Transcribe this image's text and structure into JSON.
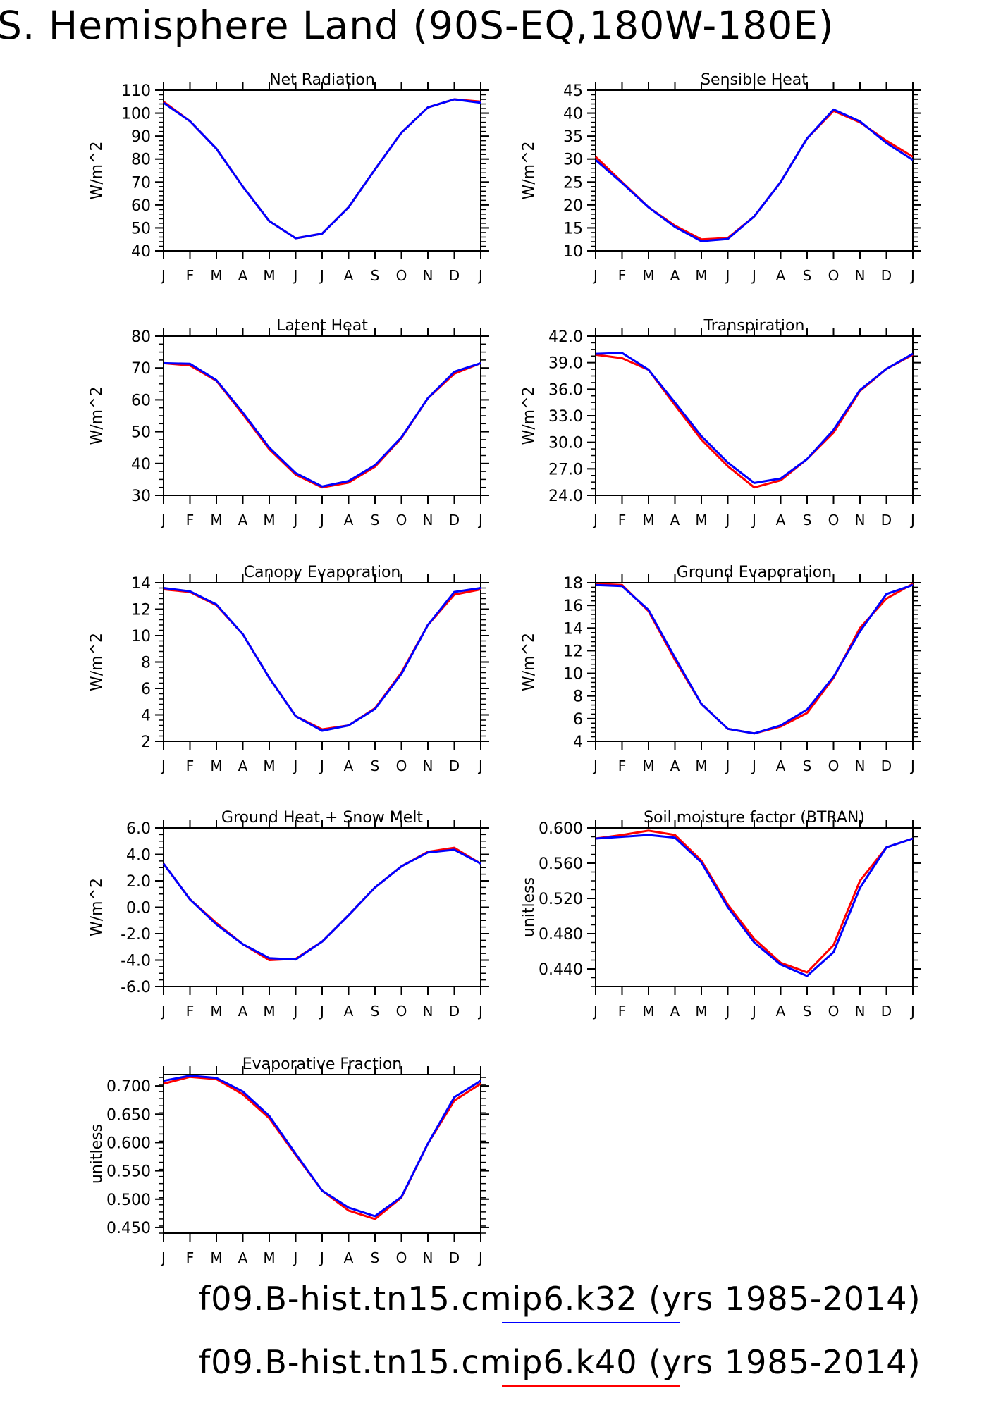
{
  "page": {
    "title": "S. Hemisphere Land (90S-EQ,180W-180E)"
  },
  "colors": {
    "k32": "#0000ff",
    "k40": "#ff0000"
  },
  "legend": [
    {
      "text": "f09.B-hist.tn15.cmip6.k32 (yrs 1985-2014)",
      "color": "#0000ff"
    },
    {
      "text": "f09.B-hist.tn15.cmip6.k40 (yrs 1985-2014)",
      "color": "#ff0000"
    }
  ],
  "chart_data": [
    {
      "type": "line",
      "title": "Net Radiation",
      "ylabel": "W/m^2",
      "x": [
        "J",
        "F",
        "M",
        "A",
        "M",
        "J",
        "J",
        "A",
        "S",
        "O",
        "N",
        "D",
        "J"
      ],
      "ylim": [
        40,
        110
      ],
      "yticks": [
        "40",
        "50",
        "60",
        "70",
        "80",
        "90",
        "100",
        "110"
      ],
      "yticks_values": [
        40,
        50,
        60,
        70,
        80,
        90,
        100,
        110
      ],
      "minor": 1,
      "series": [
        {
          "color": "#ff0000",
          "values": [
            105,
            96.5,
            84.5,
            68,
            53,
            45.5,
            47.5,
            59,
            75.5,
            91.5,
            102.5,
            106,
            105
          ]
        },
        {
          "color": "#0000ff",
          "values": [
            104.5,
            96.5,
            84.5,
            68,
            53,
            45.5,
            47.5,
            59,
            75.5,
            91.5,
            102.5,
            106,
            104.5
          ]
        }
      ]
    },
    {
      "type": "line",
      "title": "Sensible Heat",
      "ylabel": "W/m^2",
      "x": [
        "J",
        "F",
        "M",
        "A",
        "M",
        "J",
        "J",
        "A",
        "S",
        "O",
        "N",
        "D",
        "J"
      ],
      "ylim": [
        10,
        45
      ],
      "yticks": [
        "10",
        "15",
        "20",
        "25",
        "30",
        "35",
        "40",
        "45"
      ],
      "yticks_values": [
        10,
        15,
        20,
        25,
        30,
        35,
        40,
        45
      ],
      "minor": 1,
      "series": [
        {
          "color": "#ff0000",
          "values": [
            30.5,
            25,
            19.5,
            15.5,
            12.5,
            12.8,
            17.5,
            25,
            34.5,
            40.5,
            38,
            34,
            30.5
          ]
        },
        {
          "color": "#0000ff",
          "values": [
            29.8,
            24.8,
            19.5,
            15.2,
            12.1,
            12.6,
            17.5,
            25,
            34.5,
            40.8,
            38.2,
            33.5,
            29.8
          ]
        }
      ]
    },
    {
      "type": "line",
      "title": "Latent Heat",
      "ylabel": "W/m^2",
      "x": [
        "J",
        "F",
        "M",
        "A",
        "M",
        "J",
        "J",
        "A",
        "S",
        "O",
        "N",
        "D",
        "J"
      ],
      "ylim": [
        30,
        80
      ],
      "yticks": [
        "30",
        "40",
        "50",
        "60",
        "70",
        "80"
      ],
      "yticks_values": [
        30,
        40,
        50,
        60,
        70,
        80
      ],
      "minor": 2,
      "series": [
        {
          "color": "#ff0000",
          "values": [
            71.5,
            70.8,
            66,
            55.5,
            44.5,
            36.5,
            32.5,
            34,
            39,
            48,
            60.5,
            68.2,
            71.5
          ]
        },
        {
          "color": "#0000ff",
          "values": [
            71.5,
            71.3,
            66.2,
            56,
            45,
            37,
            32.8,
            34.5,
            39.5,
            48.2,
            60.5,
            68.8,
            71.5
          ]
        }
      ]
    },
    {
      "type": "line",
      "title": "Transpiration",
      "ylabel": "W/m^2",
      "x": [
        "J",
        "F",
        "M",
        "A",
        "M",
        "J",
        "J",
        "A",
        "S",
        "O",
        "N",
        "D",
        "J"
      ],
      "ylim": [
        24,
        42
      ],
      "yticks": [
        "24.0",
        "27.0",
        "30.0",
        "33.0",
        "36.0",
        "39.0",
        "42.0"
      ],
      "yticks_values": [
        24,
        27,
        30,
        33,
        36,
        39,
        42
      ],
      "minor": 2,
      "series": [
        {
          "color": "#ff0000",
          "values": [
            39.9,
            39.5,
            38.2,
            34.2,
            30.3,
            27.3,
            24.9,
            25.7,
            28.1,
            31.1,
            35.8,
            38.3,
            39.9
          ]
        },
        {
          "color": "#0000ff",
          "values": [
            40,
            40.1,
            38.2,
            34.5,
            30.7,
            27.7,
            25.4,
            25.9,
            28.1,
            31.4,
            35.9,
            38.3,
            40
          ]
        }
      ]
    },
    {
      "type": "line",
      "title": "Canopy Evaporation",
      "ylabel": "W/m^2",
      "x": [
        "J",
        "F",
        "M",
        "A",
        "M",
        "J",
        "J",
        "A",
        "S",
        "O",
        "N",
        "D",
        "J"
      ],
      "ylim": [
        2,
        14
      ],
      "yticks": [
        "2",
        "4",
        "6",
        "8",
        "10",
        "12",
        "14"
      ],
      "yticks_values": [
        2,
        4,
        6,
        8,
        10,
        12,
        14
      ],
      "minor": 1,
      "series": [
        {
          "color": "#ff0000",
          "values": [
            13.5,
            13.3,
            12.3,
            10.1,
            6.8,
            3.9,
            2.9,
            3.2,
            4.5,
            7.2,
            10.8,
            13.1,
            13.5
          ]
        },
        {
          "color": "#0000ff",
          "values": [
            13.6,
            13.35,
            12.35,
            10.1,
            6.8,
            3.9,
            2.8,
            3.2,
            4.45,
            7.1,
            10.8,
            13.3,
            13.6
          ]
        }
      ]
    },
    {
      "type": "line",
      "title": "Ground Evaporation",
      "ylabel": "W/m^2",
      "x": [
        "J",
        "F",
        "M",
        "A",
        "M",
        "J",
        "J",
        "A",
        "S",
        "O",
        "N",
        "D",
        "J"
      ],
      "ylim": [
        4,
        18
      ],
      "yticks": [
        "4",
        "6",
        "8",
        "10",
        "12",
        "14",
        "16",
        "18"
      ],
      "yticks_values": [
        4,
        6,
        8,
        10,
        12,
        14,
        16,
        18
      ],
      "minor": 1,
      "series": [
        {
          "color": "#ff0000",
          "values": [
            17.9,
            17.8,
            15.5,
            11.2,
            7.3,
            5.1,
            4.7,
            5.3,
            6.5,
            9.6,
            14,
            16.6,
            17.9
          ]
        },
        {
          "color": "#0000ff",
          "values": [
            17.8,
            17.7,
            15.6,
            11.4,
            7.3,
            5.1,
            4.7,
            5.4,
            6.8,
            9.7,
            13.7,
            17,
            17.8
          ]
        }
      ]
    },
    {
      "type": "line",
      "title": "Ground Heat + Snow Melt",
      "ylabel": "W/m^2",
      "x": [
        "J",
        "F",
        "M",
        "A",
        "M",
        "J",
        "J",
        "A",
        "S",
        "O",
        "N",
        "D",
        "J"
      ],
      "ylim": [
        -6,
        6
      ],
      "yticks": [
        "-6.0",
        "-4.0",
        "-2.0",
        "0.0",
        "2.0",
        "4.0",
        "6.0"
      ],
      "yticks_values": [
        -6,
        -4,
        -2,
        0,
        2,
        4,
        6
      ],
      "minor": 2,
      "series": [
        {
          "color": "#ff0000",
          "values": [
            3.3,
            0.6,
            -1.2,
            -2.8,
            -4.0,
            -3.9,
            -2.6,
            -0.6,
            1.5,
            3.1,
            4.2,
            4.5,
            3.3
          ]
        },
        {
          "color": "#0000ff",
          "values": [
            3.3,
            0.6,
            -1.3,
            -2.8,
            -3.85,
            -3.95,
            -2.6,
            -0.6,
            1.5,
            3.1,
            4.15,
            4.35,
            3.3
          ]
        }
      ]
    },
    {
      "type": "line",
      "title": "Soil moisture factor (BTRAN)",
      "ylabel": "unitless",
      "x": [
        "J",
        "F",
        "M",
        "A",
        "M",
        "J",
        "J",
        "A",
        "S",
        "O",
        "N",
        "D",
        "J"
      ],
      "ylim": [
        0.42,
        0.6
      ],
      "yticks": [
        "0.440",
        "0.480",
        "0.520",
        "0.560",
        "0.600"
      ],
      "yticks_values": [
        0.44,
        0.48,
        0.52,
        0.56,
        0.6
      ],
      "minor": 2,
      "series": [
        {
          "color": "#ff0000",
          "values": [
            0.588,
            0.592,
            0.597,
            0.592,
            0.563,
            0.513,
            0.474,
            0.447,
            0.436,
            0.467,
            0.54,
            0.578,
            0.588
          ]
        },
        {
          "color": "#0000ff",
          "values": [
            0.588,
            0.59,
            0.592,
            0.589,
            0.561,
            0.51,
            0.47,
            0.445,
            0.432,
            0.459,
            0.532,
            0.578,
            0.588
          ]
        }
      ]
    },
    {
      "type": "line",
      "title": "Evaporative Fraction",
      "ylabel": "unitless",
      "x": [
        "J",
        "F",
        "M",
        "A",
        "M",
        "J",
        "J",
        "A",
        "S",
        "O",
        "N",
        "D",
        "J"
      ],
      "ylim": [
        0.44,
        0.72
      ],
      "yticks": [
        "0.450",
        "0.500",
        "0.550",
        "0.600",
        "0.650",
        "0.700"
      ],
      "yticks_values": [
        0.45,
        0.5,
        0.55,
        0.6,
        0.65,
        0.7
      ],
      "minor": 2,
      "series": [
        {
          "color": "#ff0000",
          "values": [
            0.704,
            0.716,
            0.712,
            0.685,
            0.643,
            0.578,
            0.515,
            0.48,
            0.465,
            0.503,
            0.598,
            0.674,
            0.704
          ]
        },
        {
          "color": "#0000ff",
          "values": [
            0.709,
            0.718,
            0.714,
            0.69,
            0.647,
            0.58,
            0.515,
            0.485,
            0.47,
            0.504,
            0.598,
            0.68,
            0.709
          ]
        }
      ]
    }
  ]
}
